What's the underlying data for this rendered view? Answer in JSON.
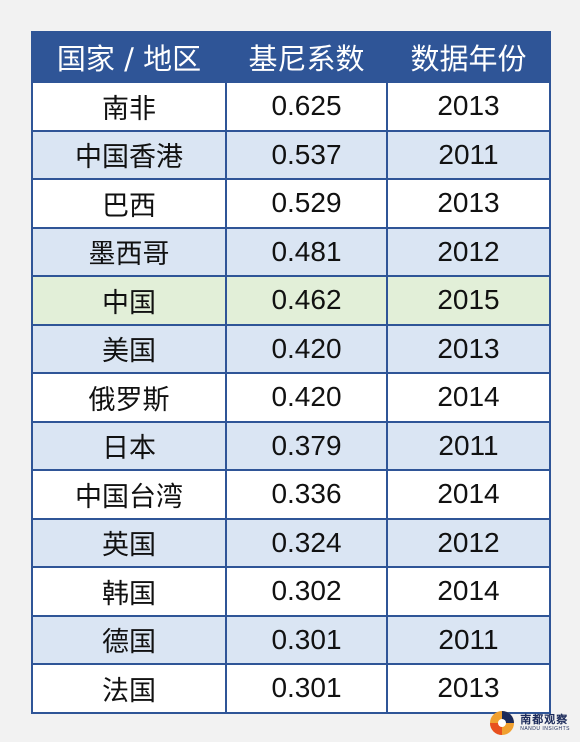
{
  "chart_data": {
    "type": "table",
    "columns": [
      "国家 / 地区",
      "基尼系数",
      "数据年份"
    ],
    "rows": [
      {
        "region": "南非",
        "gini": "0.625",
        "year": "2013"
      },
      {
        "region": "中国香港",
        "gini": "0.537",
        "year": "2011"
      },
      {
        "region": "巴西",
        "gini": "0.529",
        "year": "2013"
      },
      {
        "region": "墨西哥",
        "gini": "0.481",
        "year": "2012"
      },
      {
        "region": "中国",
        "gini": "0.462",
        "year": "2015",
        "highlight": true
      },
      {
        "region": "美国",
        "gini": "0.420",
        "year": "2013"
      },
      {
        "region": "俄罗斯",
        "gini": "0.420",
        "year": "2014"
      },
      {
        "region": "日本",
        "gini": "0.379",
        "year": "2011"
      },
      {
        "region": "中国台湾",
        "gini": "0.336",
        "year": "2014"
      },
      {
        "region": "英国",
        "gini": "0.324",
        "year": "2012"
      },
      {
        "region": "韩国",
        "gini": "0.302",
        "year": "2014"
      },
      {
        "region": "德国",
        "gini": "0.301",
        "year": "2011"
      },
      {
        "region": "法国",
        "gini": "0.301",
        "year": "2013"
      }
    ]
  },
  "colors": {
    "header_bg": "#2f5597",
    "row_alt_bg": "#dae5f3",
    "highlight_bg": "#e2efd8",
    "border": "#2f5597"
  },
  "logo": {
    "name": "南都观察",
    "subtitle": "NANDU INSIGHTS",
    "mark_icon": "nandu-logo-mark-icon"
  }
}
